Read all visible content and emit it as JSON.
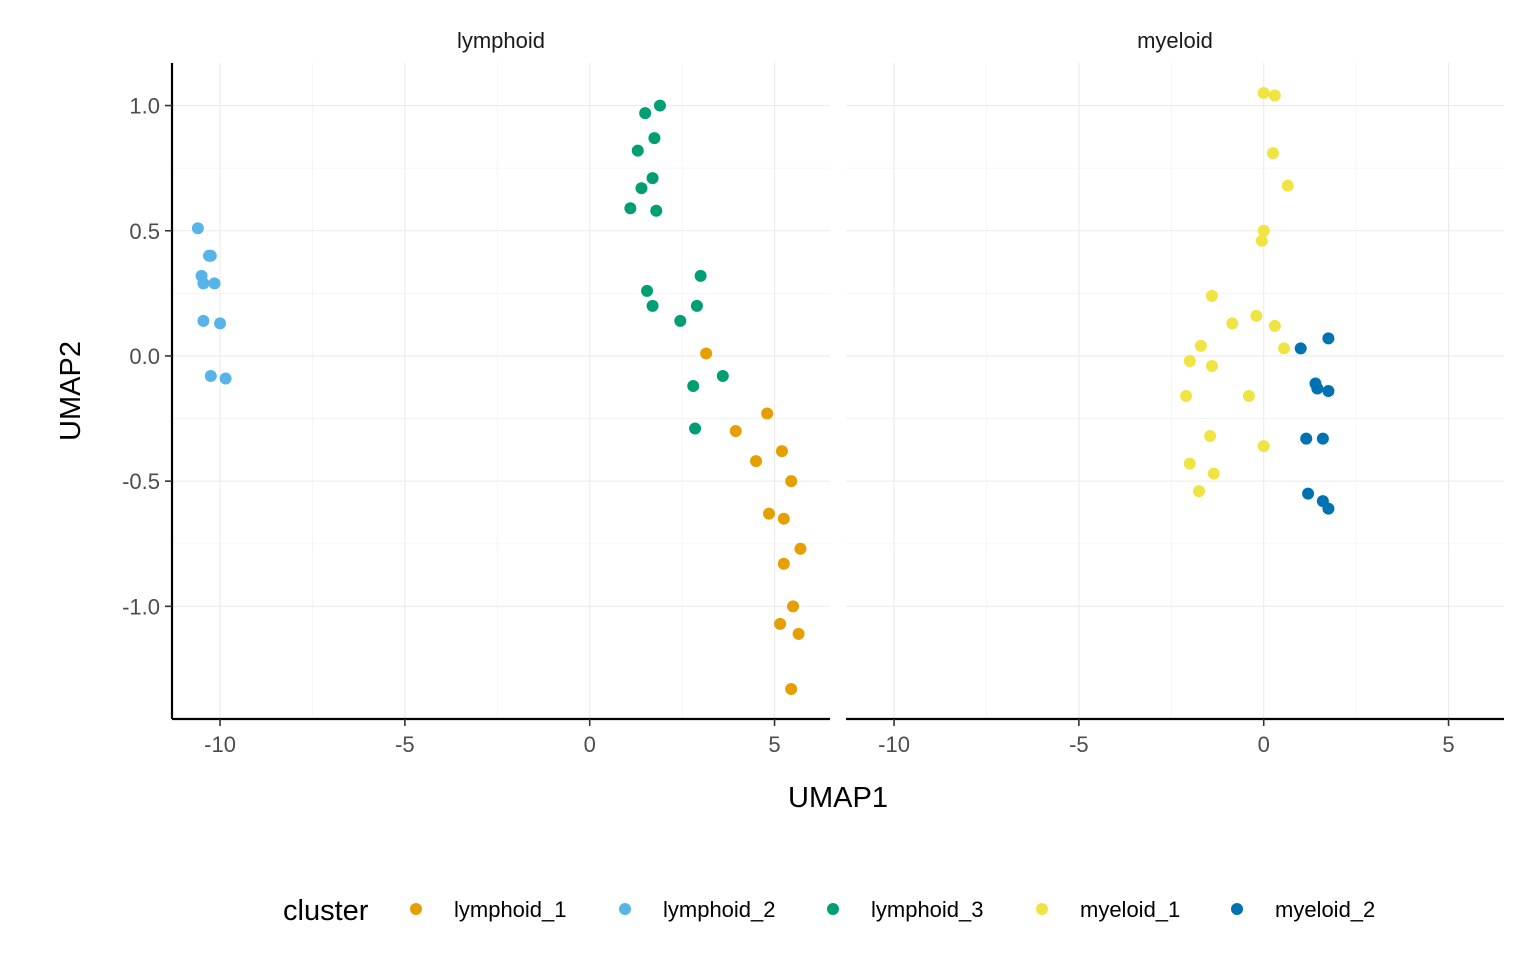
{
  "chart_data": {
    "type": "scatter",
    "xlabel": "UMAP1",
    "ylabel": "UMAP2",
    "xlim": [
      -11.3,
      6.5
    ],
    "ylim": [
      -1.45,
      1.17
    ],
    "x_ticks": [
      -10,
      -5,
      0,
      5
    ],
    "x_tick_labels": [
      "-10",
      "-5",
      "0",
      "5"
    ],
    "y_ticks": [
      1.0,
      0.5,
      0.0,
      -0.5,
      -1.0
    ],
    "y_tick_labels": [
      "1.0",
      "0.5",
      "0.0",
      "-0.5",
      "-1.0"
    ],
    "grid": true,
    "legend": {
      "title": "cluster",
      "position": "bottom",
      "entries": [
        {
          "name": "lymphoid_1",
          "color": "#E69F00"
        },
        {
          "name": "lymphoid_2",
          "color": "#56B4E9"
        },
        {
          "name": "lymphoid_3",
          "color": "#009E73"
        },
        {
          "name": "myeloid_1",
          "color": "#F0E442"
        },
        {
          "name": "myeloid_2",
          "color": "#0072B2"
        }
      ]
    },
    "panels": [
      {
        "title": "lymphoid",
        "series": [
          {
            "name": "lymphoid_1",
            "points": [
              [
                3.15,
                0.01
              ],
              [
                4.8,
                -0.23
              ],
              [
                3.95,
                -0.3
              ],
              [
                5.2,
                -0.38
              ],
              [
                4.5,
                -0.42
              ],
              [
                5.45,
                -0.5
              ],
              [
                4.85,
                -0.63
              ],
              [
                5.25,
                -0.65
              ],
              [
                5.7,
                -0.77
              ],
              [
                5.25,
                -0.83
              ],
              [
                5.5,
                -1.0
              ],
              [
                5.15,
                -1.07
              ],
              [
                5.65,
                -1.11
              ],
              [
                5.45,
                -1.33
              ]
            ]
          },
          {
            "name": "lymphoid_2",
            "points": [
              [
                -10.6,
                0.51
              ],
              [
                -10.3,
                0.4
              ],
              [
                -10.25,
                0.4
              ],
              [
                -10.5,
                0.32
              ],
              [
                -10.45,
                0.29
              ],
              [
                -10.15,
                0.29
              ],
              [
                -10.45,
                0.14
              ],
              [
                -10.0,
                0.13
              ],
              [
                -10.25,
                -0.08
              ],
              [
                -9.85,
                -0.09
              ]
            ]
          },
          {
            "name": "lymphoid_3",
            "points": [
              [
                1.9,
                1.0
              ],
              [
                1.5,
                0.97
              ],
              [
                1.75,
                0.87
              ],
              [
                1.3,
                0.82
              ],
              [
                1.7,
                0.71
              ],
              [
                1.4,
                0.67
              ],
              [
                1.1,
                0.59
              ],
              [
                1.8,
                0.58
              ],
              [
                3.0,
                0.32
              ],
              [
                1.55,
                0.26
              ],
              [
                2.9,
                0.2
              ],
              [
                1.7,
                0.2
              ],
              [
                2.45,
                0.14
              ],
              [
                3.6,
                -0.08
              ],
              [
                2.8,
                -0.12
              ],
              [
                2.85,
                -0.29
              ]
            ]
          }
        ]
      },
      {
        "title": "myeloid",
        "series": [
          {
            "name": "myeloid_1",
            "points": [
              [
                0.0,
                1.05
              ],
              [
                0.3,
                1.04
              ],
              [
                0.25,
                0.81
              ],
              [
                0.65,
                0.68
              ],
              [
                0.0,
                0.5
              ],
              [
                -0.05,
                0.46
              ],
              [
                -1.4,
                0.24
              ],
              [
                -0.2,
                0.16
              ],
              [
                -0.85,
                0.13
              ],
              [
                0.3,
                0.12
              ],
              [
                -1.7,
                0.04
              ],
              [
                0.55,
                0.03
              ],
              [
                -2.0,
                -0.02
              ],
              [
                -1.4,
                -0.04
              ],
              [
                -2.1,
                -0.16
              ],
              [
                -0.4,
                -0.16
              ],
              [
                -1.45,
                -0.32
              ],
              [
                0.0,
                -0.36
              ],
              [
                -2.0,
                -0.43
              ],
              [
                -1.35,
                -0.47
              ],
              [
                -1.75,
                -0.54
              ]
            ]
          },
          {
            "name": "myeloid_2",
            "points": [
              [
                1.75,
                0.07
              ],
              [
                1.0,
                0.03
              ],
              [
                1.4,
                -0.11
              ],
              [
                1.45,
                -0.13
              ],
              [
                1.75,
                -0.14
              ],
              [
                1.15,
                -0.33
              ],
              [
                1.6,
                -0.33
              ],
              [
                1.2,
                -0.55
              ],
              [
                1.6,
                -0.58
              ],
              [
                1.75,
                -0.61
              ]
            ]
          }
        ]
      }
    ]
  }
}
